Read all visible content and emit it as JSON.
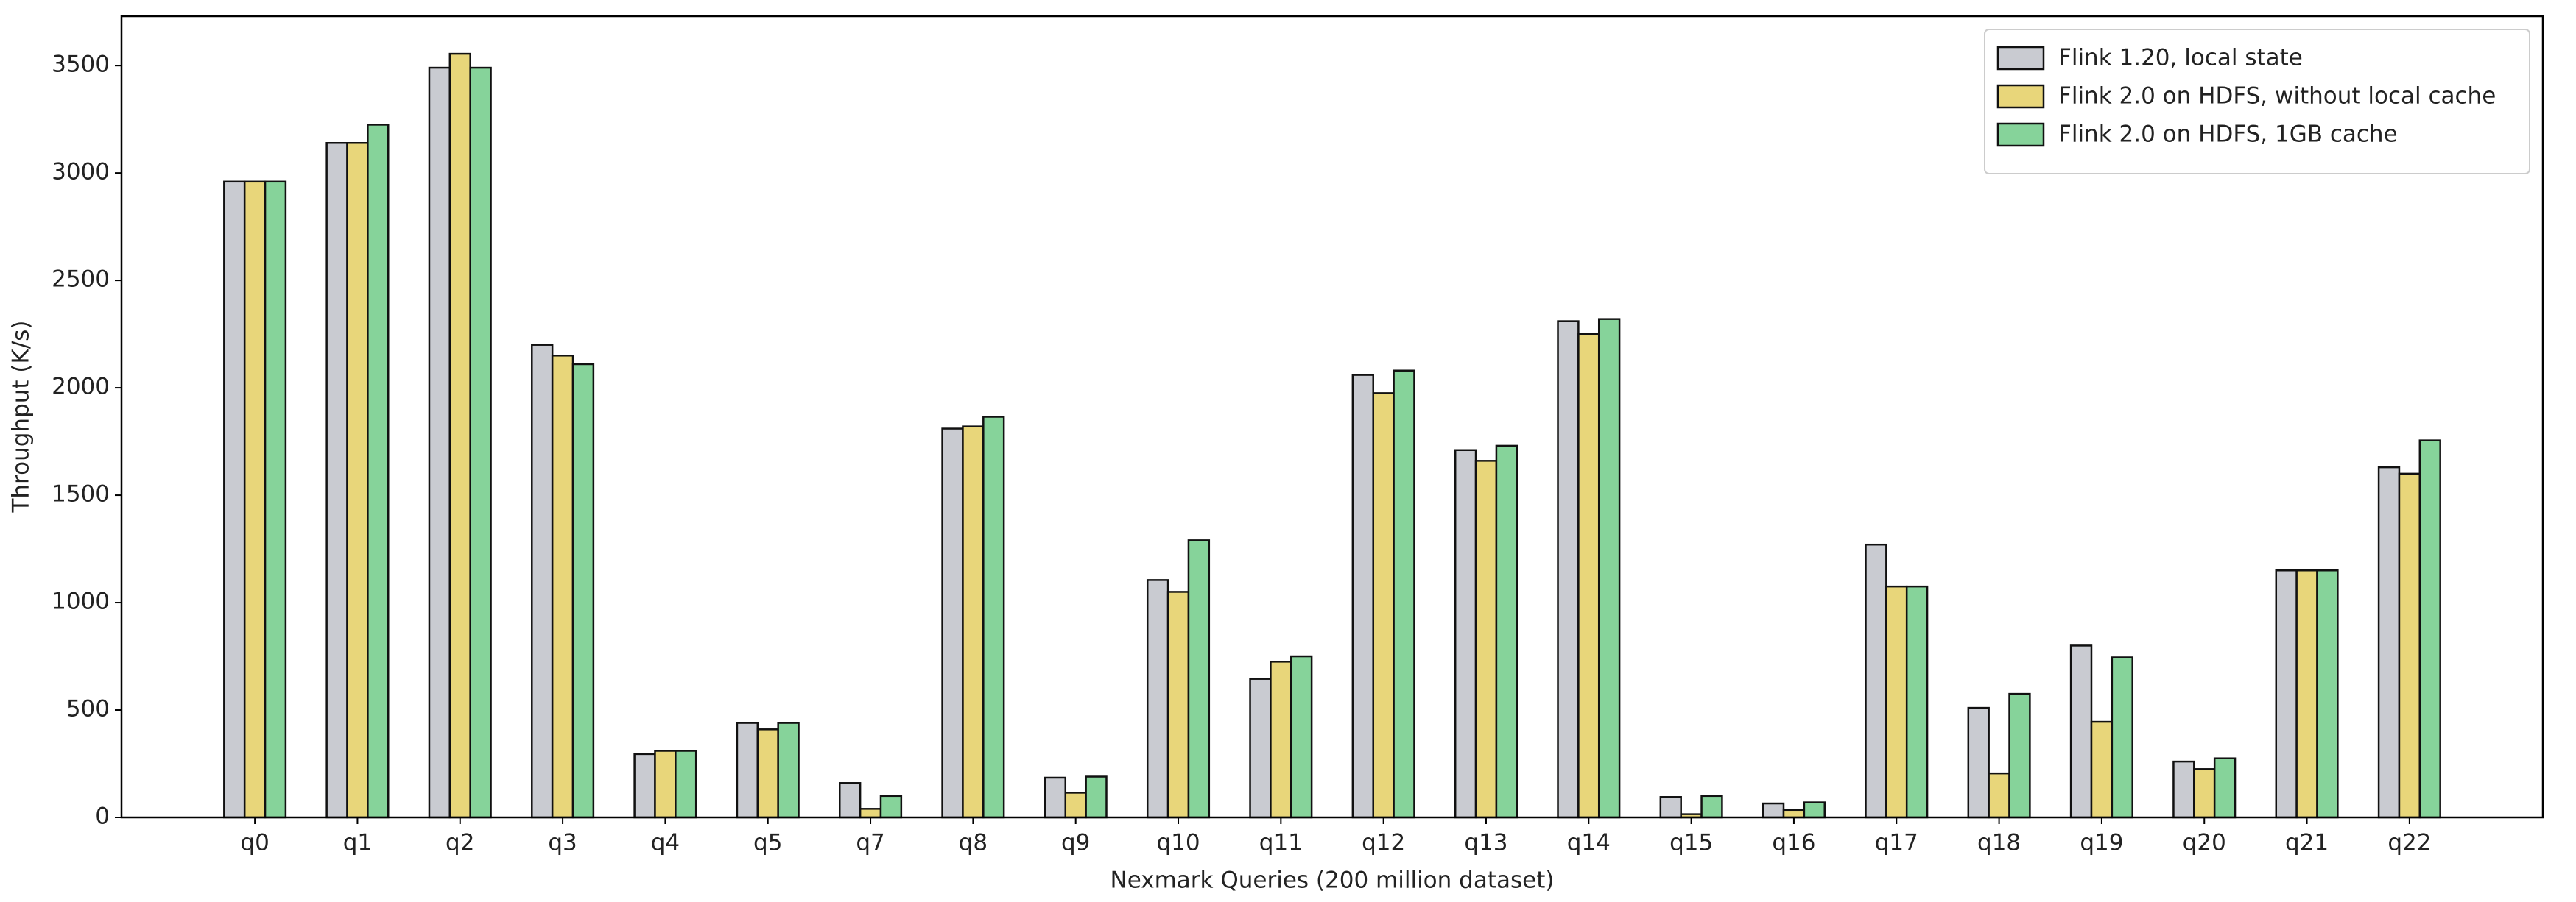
{
  "chart_data": {
    "type": "bar",
    "x_label": "Nexmark Queries (200 million dataset)",
    "y_label": "Throughput (K/s)",
    "categories": [
      "q0",
      "q1",
      "q2",
      "q3",
      "q4",
      "q5",
      "q7",
      "q8",
      "q9",
      "q10",
      "q11",
      "q12",
      "q13",
      "q14",
      "q15",
      "q16",
      "q17",
      "q18",
      "q19",
      "q20",
      "q21",
      "q22"
    ],
    "series": [
      {
        "name": "Flink 1.20, local state",
        "color": "#c9cbd1",
        "values": [
          2960,
          3140,
          3490,
          2200,
          295,
          440,
          160,
          1810,
          185,
          1105,
          645,
          2060,
          1710,
          2310,
          95,
          65,
          1270,
          510,
          800,
          260,
          1150,
          1630
        ]
      },
      {
        "name": "Flink 2.0 on HDFS, without local cache",
        "color": "#e8d67a",
        "values": [
          2960,
          3140,
          3555,
          2150,
          310,
          410,
          40,
          1820,
          115,
          1050,
          725,
          1975,
          1660,
          2250,
          15,
          35,
          1075,
          205,
          445,
          225,
          1150,
          1600
        ]
      },
      {
        "name": "Flink 2.0 on HDFS, 1GB cache",
        "color": "#86d39a",
        "values": [
          2960,
          3225,
          3490,
          2110,
          310,
          440,
          100,
          1865,
          190,
          1290,
          750,
          2080,
          1730,
          2320,
          100,
          70,
          1075,
          575,
          745,
          275,
          1150,
          1755
        ]
      }
    ],
    "ylim": [
      0,
      3730
    ],
    "yticks": [
      0,
      500,
      1000,
      1500,
      2000,
      2500,
      3000,
      3500
    ],
    "legend": "upper right",
    "grid": false
  }
}
